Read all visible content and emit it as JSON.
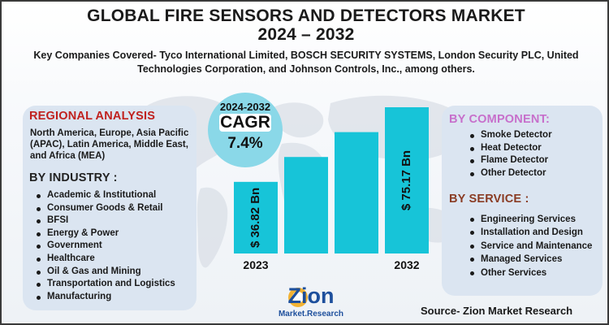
{
  "title_line1": "GLOBAL FIRE SENSORS AND DETECTORS MARKET",
  "title_line2": "2024 – 2032",
  "subtitle": "Key Companies Covered- Tyco International Limited, BOSCH SECURITY SYSTEMS, London Security PLC, United Technologies Corporation, and Johnson Controls, Inc., among others.",
  "regional": {
    "heading": "REGIONAL ANALYSIS",
    "text": "North America, Europe, Asia Pacific (APAC), Latin America, Middle East, and Africa (MEA)"
  },
  "industry": {
    "heading": "BY INDUSTRY :",
    "items": [
      "Academic & Institutional",
      "Consumer Goods & Retail",
      "BFSI",
      "Energy & Power",
      "Government",
      "Healthcare",
      "Oil & Gas and Mining",
      "Transportation and Logistics",
      "Manufacturing"
    ]
  },
  "component": {
    "heading": "BY COMPONENT:",
    "items": [
      "Smoke Detector",
      "Heat Detector",
      "Flame Detector",
      "Other Detector"
    ]
  },
  "service": {
    "heading": "BY SERVICE :",
    "items": [
      "Engineering Services",
      "Installation and Design",
      "Service and Maintenance",
      "Managed Services",
      "Other Services"
    ]
  },
  "cagr": {
    "years": "2024-2032",
    "label": "CAGR",
    "value": "7.4%"
  },
  "source": "Source- Zion Market Research",
  "logo": {
    "name": "Zion",
    "sub": "Market.Research"
  },
  "colors": {
    "bar": "#17c4d8",
    "region_heading": "#c0211e",
    "component_heading": "#c76fcb",
    "service_heading": "#8a3c24",
    "panel": "#dbe5f1",
    "cagr_circle": "#8ad8e8"
  },
  "chart_data": {
    "type": "bar",
    "categories": [
      "2023",
      "",
      "",
      "2032"
    ],
    "values": [
      36.82,
      null,
      null,
      75.17
    ],
    "data_labels": [
      "$ 36.82 Bn",
      "",
      "",
      "$ 75.17 Bn"
    ],
    "note": "Intermediate bars unlabeled; heights rise steadily between the two labeled years"
  }
}
